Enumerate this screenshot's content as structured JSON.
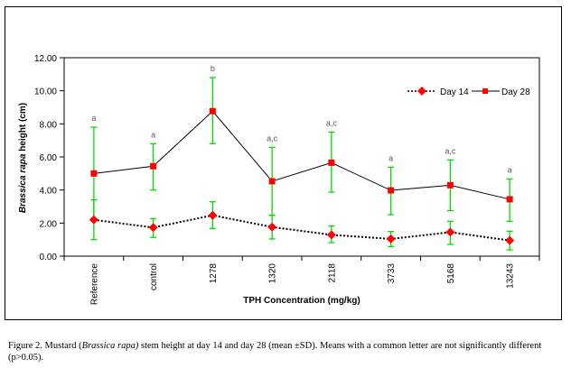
{
  "chart_data": {
    "type": "line",
    "title": "",
    "xlabel": "TPH Concentration (mg/kg)",
    "ylabel_italic": "Brassica rapa",
    "ylabel_rest": " height (cm)",
    "ylim": [
      0,
      12
    ],
    "yticks": [
      0,
      2,
      4,
      6,
      8,
      10,
      12
    ],
    "ytick_labels": [
      "0.00",
      "2.00",
      "4.00",
      "6.00",
      "8.00",
      "10.00",
      "12.00"
    ],
    "grid": false,
    "legend_position": "top-right",
    "categories": [
      "Reference",
      "control",
      "1278",
      "1320",
      "2118",
      "3733",
      "5168",
      "13243"
    ],
    "series": [
      {
        "name": "Day 14",
        "marker": "diamond",
        "line_style": "dotted",
        "color": "#ff0000",
        "line_color": "#000000",
        "values": [
          2.2,
          1.73,
          2.47,
          1.76,
          1.29,
          1.04,
          1.45,
          0.95
        ],
        "err_low": [
          1.0,
          1.13,
          1.67,
          1.04,
          0.82,
          0.58,
          0.71,
          0.38
        ],
        "err_high": [
          3.4,
          2.27,
          3.29,
          2.47,
          1.82,
          1.49,
          2.11,
          1.51
        ]
      },
      {
        "name": "Day 28",
        "marker": "square",
        "line_style": "solid",
        "color": "#ff0000",
        "line_color": "#000000",
        "values": [
          5.0,
          5.44,
          8.77,
          4.53,
          5.65,
          3.98,
          4.29,
          3.44
        ],
        "err_low": [
          2.2,
          4.0,
          6.8,
          2.47,
          3.87,
          2.51,
          2.75,
          2.11
        ],
        "err_high": [
          7.8,
          6.8,
          10.8,
          6.58,
          7.5,
          5.38,
          5.82,
          4.67
        ]
      }
    ],
    "error_bar_color": "#00dd00",
    "significance_labels": [
      "a",
      "a",
      "b",
      "a,c",
      "a,c",
      "a",
      "a,c",
      "a"
    ]
  },
  "caption": {
    "prefix": "Figure 2.  Mustard (",
    "italic": "Brassica rapa)",
    "suffix": " stem height at day 14 and day  28 (mean ±SD). Means with a common letter are not significantly different (p>0.05)."
  }
}
